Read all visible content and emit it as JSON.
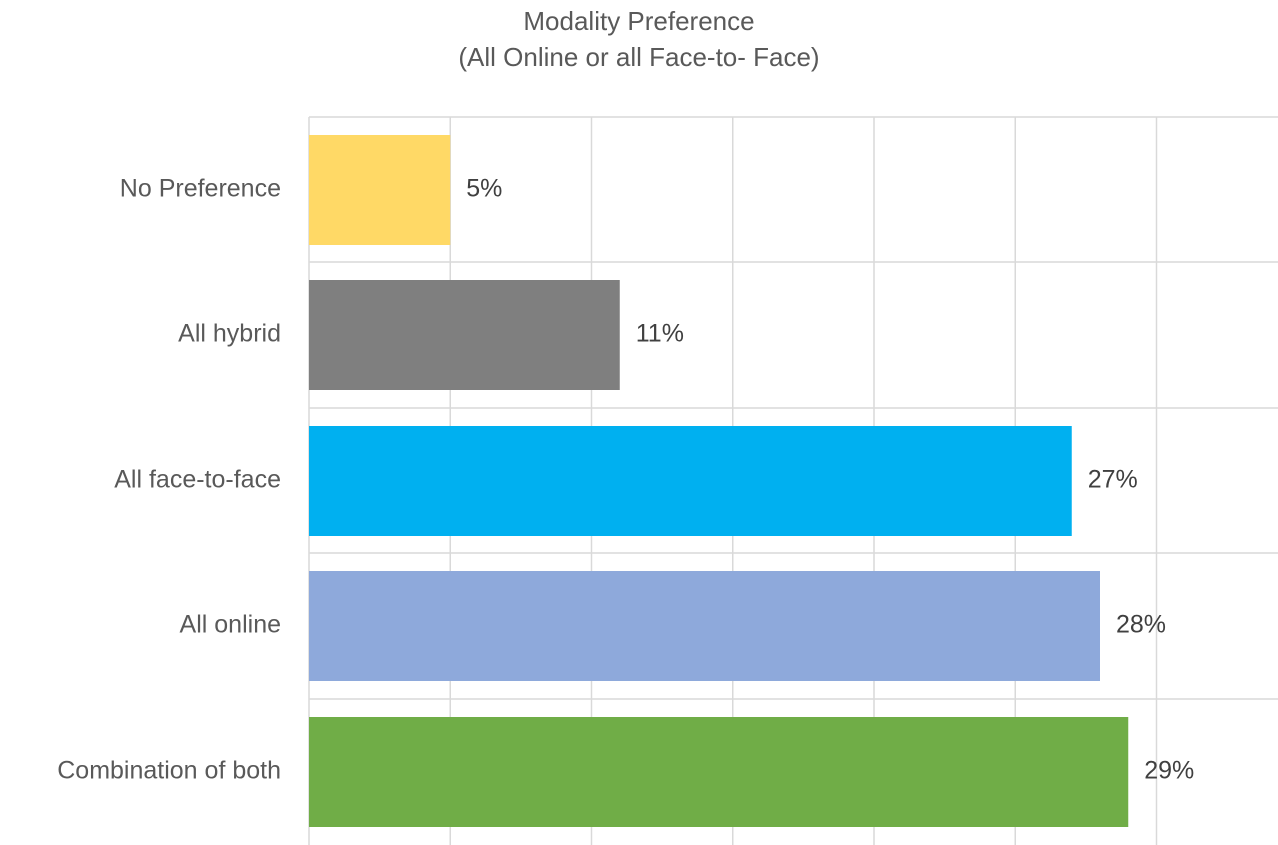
{
  "chart_data": {
    "type": "bar",
    "orientation": "horizontal",
    "title": "Modality Preference",
    "subtitle": "(All Online or all Face-to- Face)",
    "categories": [
      "No Preference",
      "All hybrid",
      "All face-to-face",
      "All online",
      "Combination of both"
    ],
    "values": [
      5,
      11,
      27,
      28,
      29
    ],
    "value_labels": [
      "5%",
      "11%",
      "27%",
      "28%",
      "29%"
    ],
    "colors": [
      "#FFD966",
      "#7F7F7F",
      "#00B0F0",
      "#8EA9DB",
      "#70AD47"
    ],
    "xlabel": "",
    "ylabel": "",
    "xlim": [
      0,
      30
    ],
    "x_grid_step": 5,
    "grid": true,
    "x_tick_labels_visible": false
  },
  "colors": {
    "gridline": "#d9d9d9",
    "text": "#595959",
    "value_label": "#404040"
  }
}
